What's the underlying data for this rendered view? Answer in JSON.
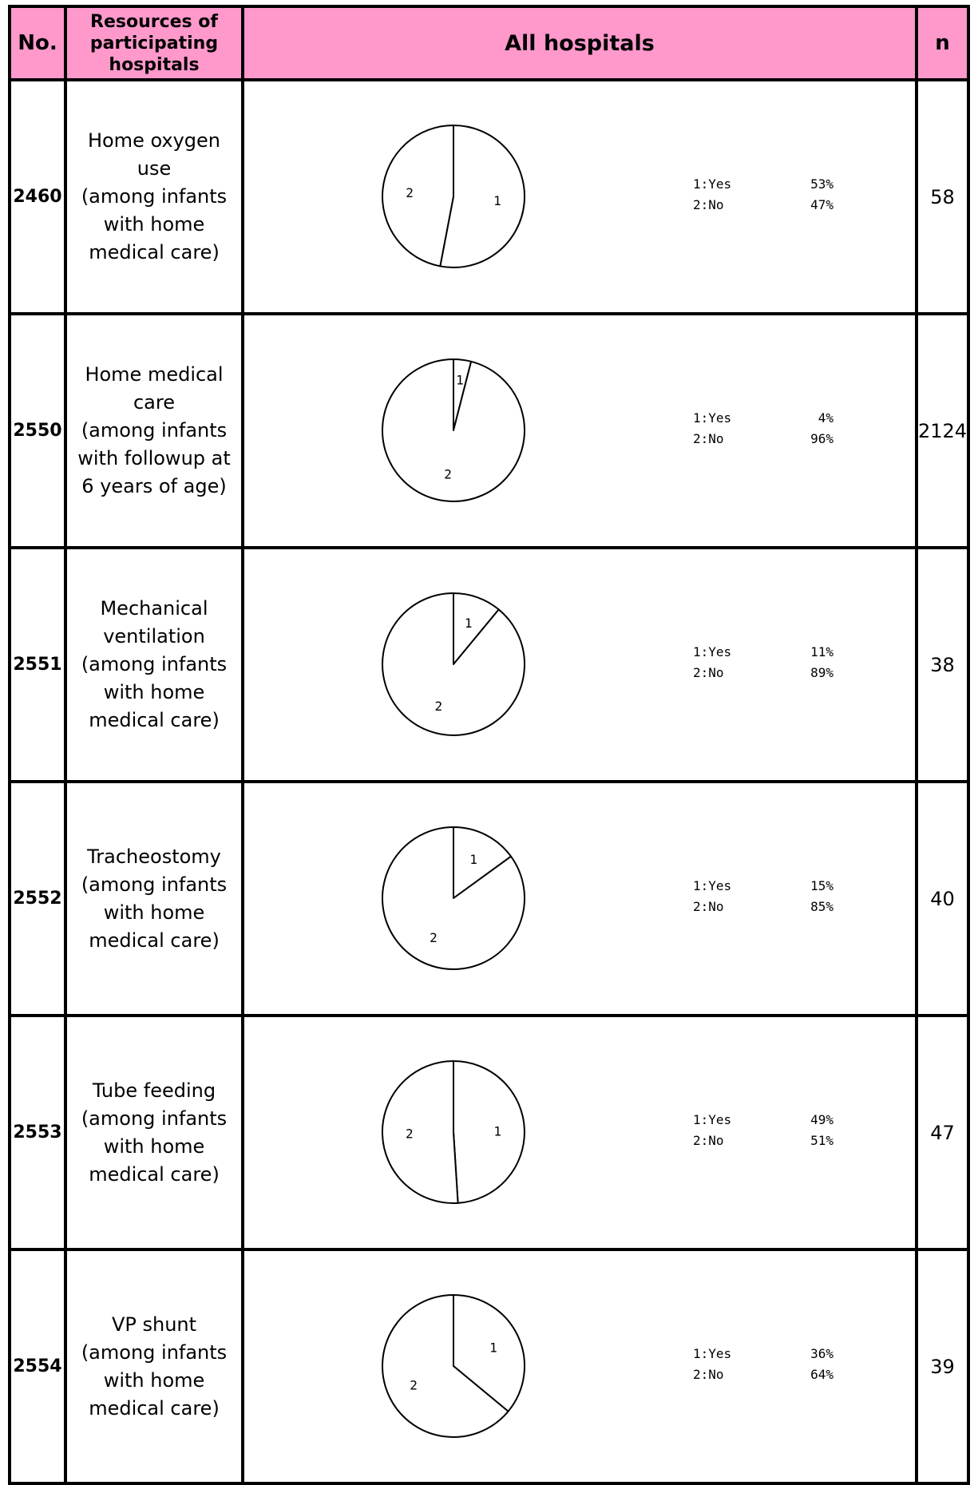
{
  "header": {
    "no_label": "No.",
    "resources_label": "Resources of\nparticipating\nhospitals",
    "all_label": "All hospitals",
    "n_label": "n"
  },
  "chart_data": [
    {
      "type": "pie",
      "id": "2460",
      "description": "Home oxygen\nuse\n(among infants\nwith home\nmedical care)",
      "n": "58",
      "slices": [
        {
          "label": "1",
          "legend": "1:Yes",
          "value": 53,
          "pct_text": "53%"
        },
        {
          "label": "2",
          "legend": "2:No",
          "value": 47,
          "pct_text": "47%"
        }
      ]
    },
    {
      "type": "pie",
      "id": "2550",
      "description": "Home medical\ncare\n(among infants\nwith followup at\n6 years of age)",
      "n": "2124",
      "slices": [
        {
          "label": "1",
          "legend": "1:Yes",
          "value": 4,
          "pct_text": "4%"
        },
        {
          "label": "2",
          "legend": "2:No",
          "value": 96,
          "pct_text": "96%"
        }
      ]
    },
    {
      "type": "pie",
      "id": "2551",
      "description": "Mechanical\nventilation\n(among infants\nwith home\nmedical care)",
      "n": "38",
      "slices": [
        {
          "label": "1",
          "legend": "1:Yes",
          "value": 11,
          "pct_text": "11%"
        },
        {
          "label": "2",
          "legend": "2:No",
          "value": 89,
          "pct_text": "89%"
        }
      ]
    },
    {
      "type": "pie",
      "id": "2552",
      "description": "Tracheostomy\n(among infants\nwith home\nmedical care)",
      "n": "40",
      "slices": [
        {
          "label": "1",
          "legend": "1:Yes",
          "value": 15,
          "pct_text": "15%"
        },
        {
          "label": "2",
          "legend": "2:No",
          "value": 85,
          "pct_text": "85%"
        }
      ]
    },
    {
      "type": "pie",
      "id": "2553",
      "description": "Tube feeding\n(among infants\nwith home\nmedical care)",
      "n": "47",
      "slices": [
        {
          "label": "1",
          "legend": "1:Yes",
          "value": 49,
          "pct_text": "49%"
        },
        {
          "label": "2",
          "legend": "2:No",
          "value": 51,
          "pct_text": "51%"
        }
      ]
    },
    {
      "type": "pie",
      "id": "2554",
      "description": "VP shunt\n(among infants\nwith home\nmedical care)",
      "n": "39",
      "slices": [
        {
          "label": "1",
          "legend": "1:Yes",
          "value": 36,
          "pct_text": "36%"
        },
        {
          "label": "2",
          "legend": "2:No",
          "value": 64,
          "pct_text": "64%"
        }
      ]
    }
  ]
}
